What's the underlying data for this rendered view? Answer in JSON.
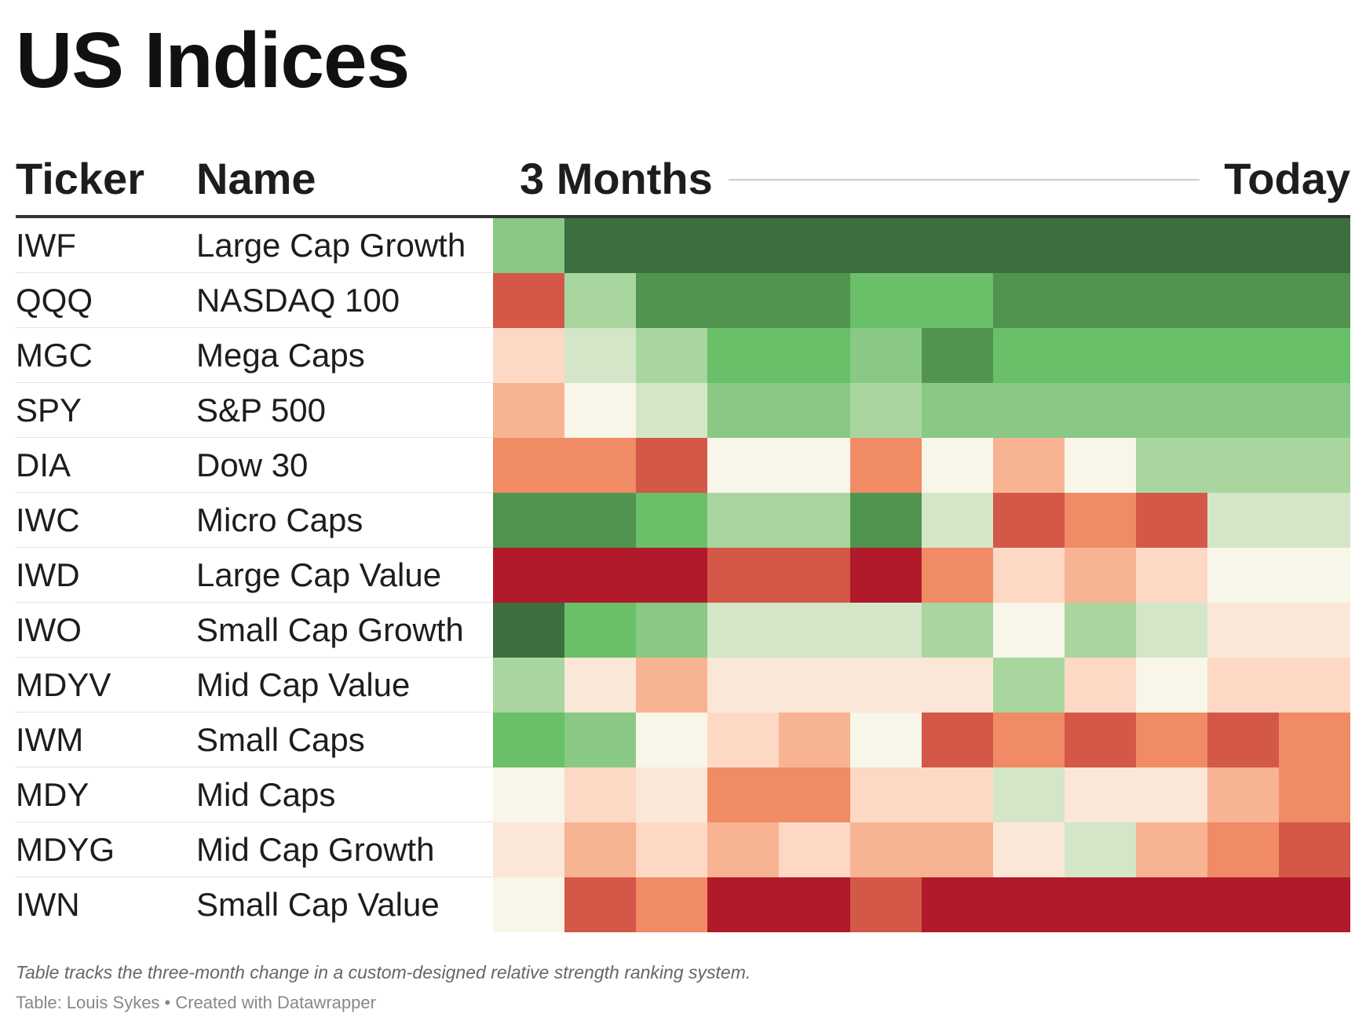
{
  "title": "US Indices",
  "header": {
    "ticker": "Ticker",
    "name": "Name",
    "start": "3 Months",
    "end": "Today"
  },
  "legend": {
    "1": "#b01a2b",
    "2": "#d35847",
    "3": "#f08b65",
    "4": "#f8b393",
    "5": "#fdd9c5",
    "6": "#fbe7d8",
    "7": "#f8f5e9",
    "8": "#d3e6c8",
    "9": "#a9d69f",
    "10": "#89c985",
    "11": "#6abf69",
    "12": "#509450",
    "13": "#3c6e40"
  },
  "chart_data": {
    "type": "heatmap",
    "title": "US Indices",
    "columns": 12,
    "x_start_label": "3 Months",
    "x_end_label": "Today",
    "scale": "1 = weakest (dark red) … 13 = strongest (dark green)",
    "rows": [
      {
        "ticker": "IWF",
        "name": "Large Cap Growth",
        "values": [
          10,
          13,
          13,
          13,
          13,
          13,
          13,
          13,
          13,
          13,
          13,
          13
        ]
      },
      {
        "ticker": "QQQ",
        "name": "NASDAQ 100",
        "values": [
          2,
          9,
          12,
          12,
          12,
          11,
          11,
          12,
          12,
          12,
          12,
          12
        ]
      },
      {
        "ticker": "MGC",
        "name": "Mega Caps",
        "values": [
          5,
          8,
          9,
          11,
          11,
          10,
          12,
          11,
          11,
          11,
          11,
          11
        ]
      },
      {
        "ticker": "SPY",
        "name": "S&P 500",
        "values": [
          4,
          7,
          8,
          10,
          10,
          9,
          10,
          10,
          10,
          10,
          10,
          10
        ]
      },
      {
        "ticker": "DIA",
        "name": "Dow 30",
        "values": [
          3,
          3,
          2,
          7,
          7,
          3,
          7,
          4,
          7,
          9,
          9,
          9
        ]
      },
      {
        "ticker": "IWC",
        "name": "Micro Caps",
        "values": [
          12,
          12,
          11,
          9,
          9,
          12,
          8,
          2,
          3,
          2,
          8,
          8
        ]
      },
      {
        "ticker": "IWD",
        "name": "Large Cap Value",
        "values": [
          1,
          1,
          1,
          2,
          2,
          1,
          3,
          5,
          4,
          5,
          7,
          7
        ]
      },
      {
        "ticker": "IWO",
        "name": "Small Cap Growth",
        "values": [
          13,
          11,
          10,
          8,
          8,
          8,
          9,
          7,
          9,
          8,
          6,
          6
        ]
      },
      {
        "ticker": "MDYV",
        "name": "Mid Cap Value",
        "values": [
          9,
          6,
          4,
          6,
          6,
          6,
          6,
          9,
          5,
          7,
          5,
          5
        ]
      },
      {
        "ticker": "IWM",
        "name": "Small Caps",
        "values": [
          11,
          10,
          7,
          5,
          4,
          7,
          2,
          3,
          2,
          3,
          2,
          3
        ]
      },
      {
        "ticker": "MDY",
        "name": "Mid Caps",
        "values": [
          7,
          5,
          6,
          3,
          3,
          5,
          5,
          8,
          6,
          6,
          4,
          3
        ]
      },
      {
        "ticker": "MDYG",
        "name": "Mid Cap Growth",
        "values": [
          6,
          4,
          5,
          4,
          5,
          4,
          4,
          6,
          8,
          4,
          3,
          2
        ]
      },
      {
        "ticker": "IWN",
        "name": "Small Cap Value",
        "values": [
          7,
          2,
          3,
          1,
          1,
          2,
          1,
          1,
          1,
          1,
          1,
          1
        ]
      }
    ]
  },
  "notes": "Table tracks the three-month change in a custom-designed relative strength ranking system.",
  "source": "Table: Louis Sykes • Created with Datawrapper"
}
